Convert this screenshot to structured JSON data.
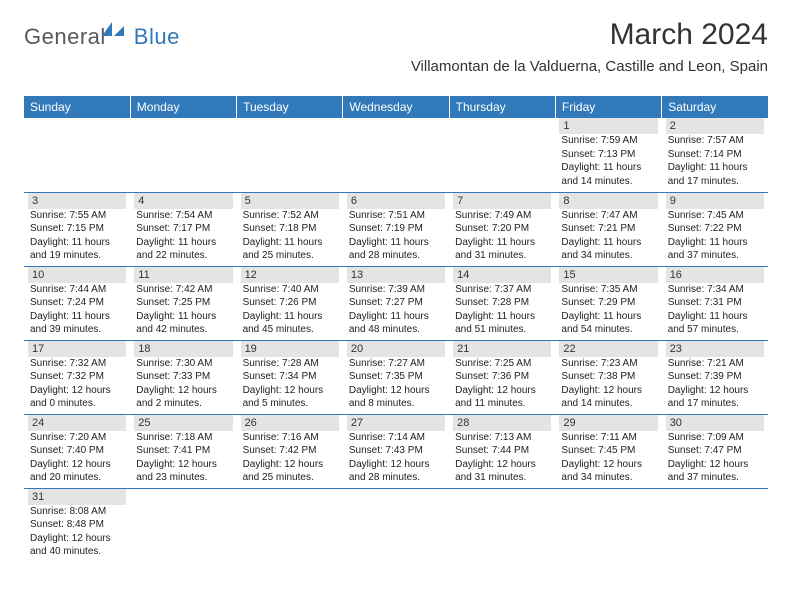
{
  "brand": {
    "part1": "General",
    "part2": "Blue",
    "color1": "#555a5f",
    "color2": "#3179b8"
  },
  "title": "March 2024",
  "location": "Villamontan de la Valduerna, Castille and Leon, Spain",
  "header_bg": "#3179b8",
  "daynum_bg": "#e4e4e4",
  "border_color": "#3179b8",
  "weekdays": [
    "Sunday",
    "Monday",
    "Tuesday",
    "Wednesday",
    "Thursday",
    "Friday",
    "Saturday"
  ],
  "weeks": [
    [
      null,
      null,
      null,
      null,
      null,
      {
        "n": "1",
        "sr": "7:59 AM",
        "ss": "7:13 PM",
        "dl": "11 hours and 14 minutes."
      },
      {
        "n": "2",
        "sr": "7:57 AM",
        "ss": "7:14 PM",
        "dl": "11 hours and 17 minutes."
      }
    ],
    [
      {
        "n": "3",
        "sr": "7:55 AM",
        "ss": "7:15 PM",
        "dl": "11 hours and 19 minutes."
      },
      {
        "n": "4",
        "sr": "7:54 AM",
        "ss": "7:17 PM",
        "dl": "11 hours and 22 minutes."
      },
      {
        "n": "5",
        "sr": "7:52 AM",
        "ss": "7:18 PM",
        "dl": "11 hours and 25 minutes."
      },
      {
        "n": "6",
        "sr": "7:51 AM",
        "ss": "7:19 PM",
        "dl": "11 hours and 28 minutes."
      },
      {
        "n": "7",
        "sr": "7:49 AM",
        "ss": "7:20 PM",
        "dl": "11 hours and 31 minutes."
      },
      {
        "n": "8",
        "sr": "7:47 AM",
        "ss": "7:21 PM",
        "dl": "11 hours and 34 minutes."
      },
      {
        "n": "9",
        "sr": "7:45 AM",
        "ss": "7:22 PM",
        "dl": "11 hours and 37 minutes."
      }
    ],
    [
      {
        "n": "10",
        "sr": "7:44 AM",
        "ss": "7:24 PM",
        "dl": "11 hours and 39 minutes."
      },
      {
        "n": "11",
        "sr": "7:42 AM",
        "ss": "7:25 PM",
        "dl": "11 hours and 42 minutes."
      },
      {
        "n": "12",
        "sr": "7:40 AM",
        "ss": "7:26 PM",
        "dl": "11 hours and 45 minutes."
      },
      {
        "n": "13",
        "sr": "7:39 AM",
        "ss": "7:27 PM",
        "dl": "11 hours and 48 minutes."
      },
      {
        "n": "14",
        "sr": "7:37 AM",
        "ss": "7:28 PM",
        "dl": "11 hours and 51 minutes."
      },
      {
        "n": "15",
        "sr": "7:35 AM",
        "ss": "7:29 PM",
        "dl": "11 hours and 54 minutes."
      },
      {
        "n": "16",
        "sr": "7:34 AM",
        "ss": "7:31 PM",
        "dl": "11 hours and 57 minutes."
      }
    ],
    [
      {
        "n": "17",
        "sr": "7:32 AM",
        "ss": "7:32 PM",
        "dl": "12 hours and 0 minutes."
      },
      {
        "n": "18",
        "sr": "7:30 AM",
        "ss": "7:33 PM",
        "dl": "12 hours and 2 minutes."
      },
      {
        "n": "19",
        "sr": "7:28 AM",
        "ss": "7:34 PM",
        "dl": "12 hours and 5 minutes."
      },
      {
        "n": "20",
        "sr": "7:27 AM",
        "ss": "7:35 PM",
        "dl": "12 hours and 8 minutes."
      },
      {
        "n": "21",
        "sr": "7:25 AM",
        "ss": "7:36 PM",
        "dl": "12 hours and 11 minutes."
      },
      {
        "n": "22",
        "sr": "7:23 AM",
        "ss": "7:38 PM",
        "dl": "12 hours and 14 minutes."
      },
      {
        "n": "23",
        "sr": "7:21 AM",
        "ss": "7:39 PM",
        "dl": "12 hours and 17 minutes."
      }
    ],
    [
      {
        "n": "24",
        "sr": "7:20 AM",
        "ss": "7:40 PM",
        "dl": "12 hours and 20 minutes."
      },
      {
        "n": "25",
        "sr": "7:18 AM",
        "ss": "7:41 PM",
        "dl": "12 hours and 23 minutes."
      },
      {
        "n": "26",
        "sr": "7:16 AM",
        "ss": "7:42 PM",
        "dl": "12 hours and 25 minutes."
      },
      {
        "n": "27",
        "sr": "7:14 AM",
        "ss": "7:43 PM",
        "dl": "12 hours and 28 minutes."
      },
      {
        "n": "28",
        "sr": "7:13 AM",
        "ss": "7:44 PM",
        "dl": "12 hours and 31 minutes."
      },
      {
        "n": "29",
        "sr": "7:11 AM",
        "ss": "7:45 PM",
        "dl": "12 hours and 34 minutes."
      },
      {
        "n": "30",
        "sr": "7:09 AM",
        "ss": "7:47 PM",
        "dl": "12 hours and 37 minutes."
      }
    ],
    [
      {
        "n": "31",
        "sr": "8:08 AM",
        "ss": "8:48 PM",
        "dl": "12 hours and 40 minutes."
      },
      null,
      null,
      null,
      null,
      null,
      null
    ]
  ],
  "labels": {
    "sunrise": "Sunrise: ",
    "sunset": "Sunset: ",
    "daylight": "Daylight: "
  }
}
